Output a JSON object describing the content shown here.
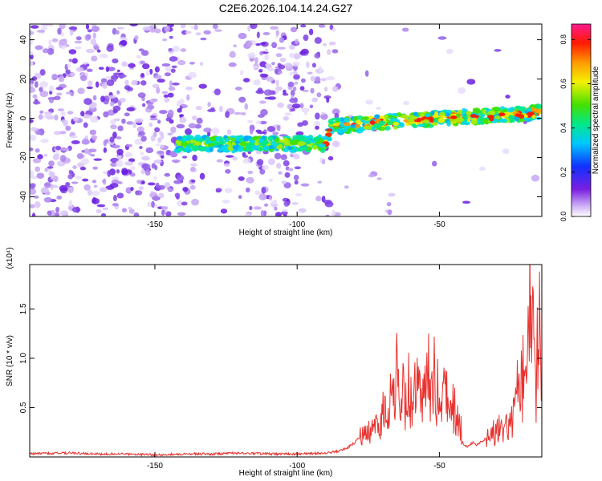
{
  "title": "C2E6.2026.104.14.24.G27",
  "colors": {
    "snr_line": "#e8322e",
    "axis": "#000000"
  },
  "chart_data": [
    {
      "type": "heatmap",
      "xlabel": "Height of straight line (km)",
      "ylabel": "Frequency (Hz)",
      "xlim": [
        -194,
        -14
      ],
      "ylim": [
        -50,
        48
      ],
      "x_ticks": [
        -150,
        -100,
        -50
      ],
      "y_ticks": [
        -40,
        -20,
        0,
        20,
        40
      ],
      "colorbar": {
        "label": "Normalized spectral amplitude",
        "range": [
          0.0,
          0.87
        ],
        "ticks": [
          0.0,
          0.2,
          0.4,
          0.6,
          0.8
        ],
        "colormap": "rainbow"
      },
      "ridge": [
        {
          "x": -140,
          "y": -13
        },
        {
          "x": -120,
          "y": -13
        },
        {
          "x": -100,
          "y": -13
        },
        {
          "x": -90,
          "y": -13
        },
        {
          "x": -88,
          "y": -4
        },
        {
          "x": -70,
          "y": -2
        },
        {
          "x": -50,
          "y": 0
        },
        {
          "x": -35,
          "y": 1
        },
        {
          "x": -14,
          "y": 3
        }
      ]
    },
    {
      "type": "line",
      "xlabel": "Height of straight line (km)",
      "ylabel": "SNR (10 * v/v)",
      "y_multiplier": "(x10⁴)",
      "xlim": [
        -194,
        -14
      ],
      "ylim": [
        0,
        1.95
      ],
      "x_ticks": [
        -150,
        -100,
        -50
      ],
      "y_ticks": [
        0.5,
        1.0,
        1.5
      ],
      "series": [
        {
          "x": [
            -194,
            -180,
            -170,
            -160,
            -150,
            -140,
            -130,
            -120,
            -110,
            -100,
            -90,
            -85,
            -82,
            -80,
            -78,
            -75,
            -73,
            -72,
            -71,
            -70,
            -69,
            -68,
            -67,
            -66,
            -65,
            -64,
            -63,
            -62,
            -61,
            -60,
            -59,
            -58,
            -57,
            -56,
            -55,
            -54,
            -53,
            -52,
            -51,
            -50,
            -49,
            -48,
            -47,
            -46,
            -45,
            -44,
            -43,
            -42,
            -41,
            -40,
            -39,
            -38,
            -37,
            -36,
            -35,
            -34,
            -33,
            -32,
            -31,
            -30,
            -29,
            -28,
            -27,
            -26,
            -25,
            -24,
            -23,
            -22,
            -21,
            -20,
            -19,
            -18,
            -17,
            -16,
            -15,
            -14
          ],
          "y": [
            0.03,
            0.04,
            0.03,
            0.03,
            0.02,
            0.03,
            0.03,
            0.04,
            0.03,
            0.03,
            0.04,
            0.06,
            0.1,
            0.14,
            0.2,
            0.25,
            0.3,
            0.5,
            0.35,
            0.4,
            0.55,
            0.45,
            0.8,
            0.6,
            0.9,
            0.7,
            0.85,
            0.55,
            0.75,
            0.6,
            0.7,
            0.65,
            0.8,
            0.55,
            0.6,
            0.85,
            0.7,
            0.95,
            0.6,
            0.75,
            0.55,
            0.65,
            0.5,
            0.6,
            0.5,
            0.4,
            0.45,
            0.15,
            0.12,
            0.1,
            0.13,
            0.15,
            0.12,
            0.14,
            0.16,
            0.18,
            0.22,
            0.2,
            0.25,
            0.22,
            0.3,
            0.25,
            0.28,
            0.3,
            0.35,
            0.4,
            0.55,
            0.9,
            0.7,
            1.0,
            0.8,
            1.95,
            1.1,
            0.7,
            1.5,
            0.9
          ]
        }
      ]
    }
  ]
}
